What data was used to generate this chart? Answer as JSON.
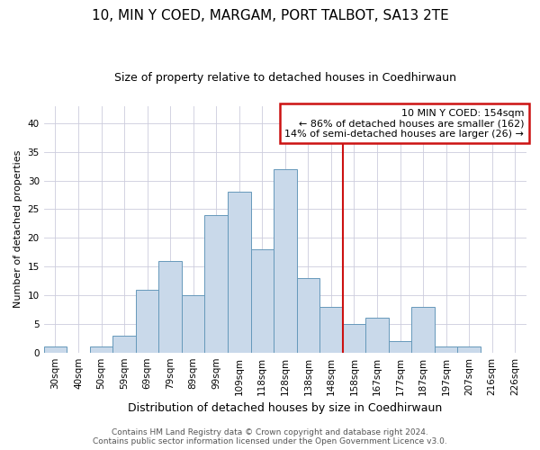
{
  "title": "10, MIN Y COED, MARGAM, PORT TALBOT, SA13 2TE",
  "subtitle": "Size of property relative to detached houses in Coedhirwaun",
  "xlabel": "Distribution of detached houses by size in Coedhirwaun",
  "ylabel": "Number of detached properties",
  "categories": [
    "30sqm",
    "40sqm",
    "50sqm",
    "59sqm",
    "69sqm",
    "79sqm",
    "89sqm",
    "99sqm",
    "109sqm",
    "118sqm",
    "128sqm",
    "138sqm",
    "148sqm",
    "158sqm",
    "167sqm",
    "177sqm",
    "187sqm",
    "197sqm",
    "207sqm",
    "216sqm",
    "226sqm"
  ],
  "values": [
    1,
    0,
    1,
    3,
    11,
    16,
    10,
    24,
    28,
    18,
    32,
    13,
    8,
    5,
    6,
    2,
    8,
    1,
    1,
    0,
    0
  ],
  "bar_color": "#c9d9ea",
  "bar_edge_color": "#6699bb",
  "vline_color": "#cc1111",
  "annotation_text": "10 MIN Y COED: 154sqm\n← 86% of detached houses are smaller (162)\n14% of semi-detached houses are larger (26) →",
  "annotation_box_color": "#cc1111",
  "ylim": [
    0,
    43
  ],
  "yticks": [
    0,
    5,
    10,
    15,
    20,
    25,
    30,
    35,
    40
  ],
  "footer_line1": "Contains HM Land Registry data © Crown copyright and database right 2024.",
  "footer_line2": "Contains public sector information licensed under the Open Government Licence v3.0.",
  "bg_color": "#ffffff",
  "grid_color": "#ccccdd",
  "title_fontsize": 11,
  "subtitle_fontsize": 9,
  "xlabel_fontsize": 9,
  "ylabel_fontsize": 8,
  "tick_fontsize": 7.5,
  "annotation_fontsize": 8,
  "footer_fontsize": 6.5,
  "vline_bar_index": 13
}
